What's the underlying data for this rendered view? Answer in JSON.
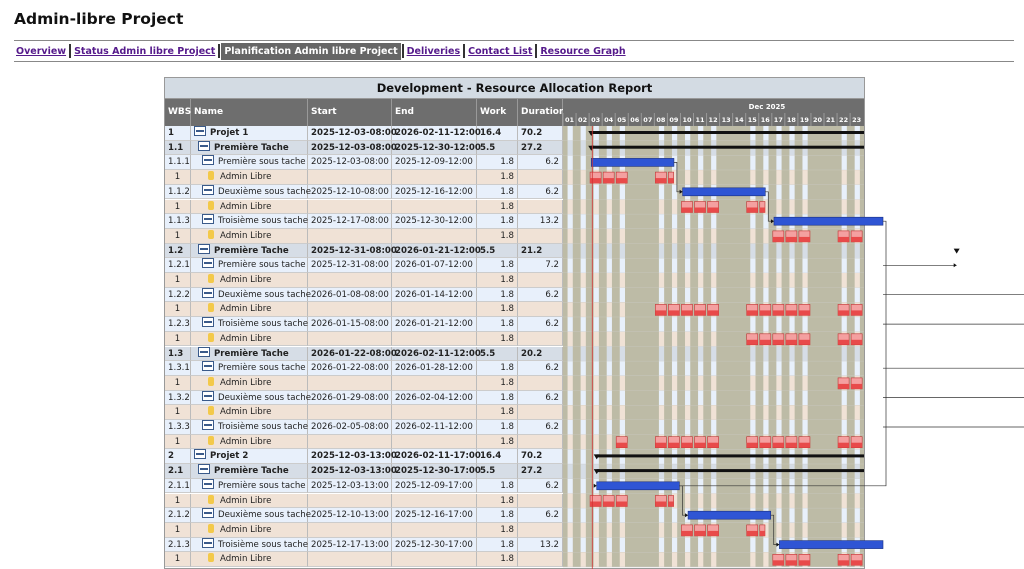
{
  "page_title": "Admin-libre Project",
  "nav": [
    {
      "label": "Overview",
      "active": false
    },
    {
      "label": "Status Admin libre Project",
      "active": false
    },
    {
      "label": "Planification Admin libre Project",
      "active": true
    },
    {
      "label": "Deliveries",
      "active": false
    },
    {
      "label": "Contact List",
      "active": false
    },
    {
      "label": "Resource Graph",
      "active": false
    }
  ],
  "report": {
    "title": "Development - Resource Allocation Report",
    "columns": [
      "WBS",
      "Name",
      "Start",
      "End",
      "Work",
      "Duration"
    ],
    "month_label": "Dec 2025",
    "days": [
      "01",
      "02",
      "03",
      "04",
      "05",
      "06",
      "07",
      "08",
      "09",
      "10",
      "11",
      "12",
      "13",
      "14",
      "15",
      "16",
      "17",
      "18",
      "19",
      "20",
      "21",
      "22",
      "23"
    ],
    "colors": {
      "task_bar": "#2f55d4",
      "resource_block": "#e84a4a",
      "today_line": "#d03030",
      "weekend": "#bdbba6"
    },
    "rows": [
      {
        "type": "proj",
        "wbs": "1",
        "name": "Projet 1",
        "start": "2025-12-03-08:00",
        "end": "2026-02-11-12:00",
        "work": "16.4",
        "duration": "70.2"
      },
      {
        "type": "sum",
        "wbs": "1.1",
        "name": "Première Tache",
        "start": "2025-12-03-08:00",
        "end": "2025-12-30-12:00",
        "work": "5.5",
        "duration": "27.2"
      },
      {
        "type": "task",
        "wbs": "1.1.1",
        "name": "Première sous tache",
        "start": "2025-12-03-08:00",
        "end": "2025-12-09-12:00",
        "work": "1.8",
        "duration": "6.2"
      },
      {
        "type": "res",
        "wbs": "1",
        "name": "Admin Libre",
        "work": "1.8",
        "start": "",
        "end": "",
        "duration": ""
      },
      {
        "type": "task",
        "wbs": "1.1.2",
        "name": "Deuxième sous tache",
        "start": "2025-12-10-08:00",
        "end": "2025-12-16-12:00",
        "work": "1.8",
        "duration": "6.2"
      },
      {
        "type": "res",
        "wbs": "1",
        "name": "Admin Libre",
        "work": "1.8",
        "start": "",
        "end": "",
        "duration": ""
      },
      {
        "type": "task",
        "wbs": "1.1.3",
        "name": "Troisième sous tache",
        "start": "2025-12-17-08:00",
        "end": "2025-12-30-12:00",
        "work": "1.8",
        "duration": "13.2"
      },
      {
        "type": "res",
        "wbs": "1",
        "name": "Admin Libre",
        "work": "1.8",
        "start": "",
        "end": "",
        "duration": ""
      },
      {
        "type": "sum",
        "wbs": "1.2",
        "name": "Première Tache",
        "start": "2025-12-31-08:00",
        "end": "2026-01-21-12:00",
        "work": "5.5",
        "duration": "21.2"
      },
      {
        "type": "task",
        "wbs": "1.2.1",
        "name": "Première sous tache",
        "start": "2025-12-31-08:00",
        "end": "2026-01-07-12:00",
        "work": "1.8",
        "duration": "7.2"
      },
      {
        "type": "res",
        "wbs": "1",
        "name": "Admin Libre",
        "work": "1.8",
        "start": "",
        "end": "",
        "duration": ""
      },
      {
        "type": "task",
        "wbs": "1.2.2",
        "name": "Deuxième sous tache",
        "start": "2026-01-08-08:00",
        "end": "2026-01-14-12:00",
        "work": "1.8",
        "duration": "6.2"
      },
      {
        "type": "res",
        "wbs": "1",
        "name": "Admin Libre",
        "work": "1.8",
        "start": "",
        "end": "",
        "duration": ""
      },
      {
        "type": "task",
        "wbs": "1.2.3",
        "name": "Troisième sous tache",
        "start": "2026-01-15-08:00",
        "end": "2026-01-21-12:00",
        "work": "1.8",
        "duration": "6.2"
      },
      {
        "type": "res",
        "wbs": "1",
        "name": "Admin Libre",
        "work": "1.8",
        "start": "",
        "end": "",
        "duration": ""
      },
      {
        "type": "sum",
        "wbs": "1.3",
        "name": "Première Tache",
        "start": "2026-01-22-08:00",
        "end": "2026-02-11-12:00",
        "work": "5.5",
        "duration": "20.2"
      },
      {
        "type": "task",
        "wbs": "1.3.1",
        "name": "Première sous tache",
        "start": "2026-01-22-08:00",
        "end": "2026-01-28-12:00",
        "work": "1.8",
        "duration": "6.2"
      },
      {
        "type": "res",
        "wbs": "1",
        "name": "Admin Libre",
        "work": "1.8",
        "start": "",
        "end": "",
        "duration": ""
      },
      {
        "type": "task",
        "wbs": "1.3.2",
        "name": "Deuxième sous tache",
        "start": "2026-01-29-08:00",
        "end": "2026-02-04-12:00",
        "work": "1.8",
        "duration": "6.2"
      },
      {
        "type": "res",
        "wbs": "1",
        "name": "Admin Libre",
        "work": "1.8",
        "start": "",
        "end": "",
        "duration": ""
      },
      {
        "type": "task",
        "wbs": "1.3.3",
        "name": "Troisième sous tache",
        "start": "2026-02-05-08:00",
        "end": "2026-02-11-12:00",
        "work": "1.8",
        "duration": "6.2"
      },
      {
        "type": "res",
        "wbs": "1",
        "name": "Admin Libre",
        "work": "1.8",
        "start": "",
        "end": "",
        "duration": ""
      },
      {
        "type": "proj",
        "wbs": "2",
        "name": "Projet 2",
        "start": "2025-12-03-13:00",
        "end": "2026-02-11-17:00",
        "work": "16.4",
        "duration": "70.2"
      },
      {
        "type": "sum",
        "wbs": "2.1",
        "name": "Première Tache",
        "start": "2025-12-03-13:00",
        "end": "2025-12-30-17:00",
        "work": "5.5",
        "duration": "27.2"
      },
      {
        "type": "task",
        "wbs": "2.1.1",
        "name": "Première sous tache",
        "start": "2025-12-03-13:00",
        "end": "2025-12-09-17:00",
        "work": "1.8",
        "duration": "6.2"
      },
      {
        "type": "res",
        "wbs": "1",
        "name": "Admin Libre",
        "work": "1.8",
        "start": "",
        "end": "",
        "duration": ""
      },
      {
        "type": "task",
        "wbs": "2.1.2",
        "name": "Deuxième sous tache",
        "start": "2025-12-10-13:00",
        "end": "2025-12-16-17:00",
        "work": "1.8",
        "duration": "6.2"
      },
      {
        "type": "res",
        "wbs": "1",
        "name": "Admin Libre",
        "work": "1.8",
        "start": "",
        "end": "",
        "duration": ""
      },
      {
        "type": "task",
        "wbs": "2.1.3",
        "name": "Troisième sous tache",
        "start": "2025-12-17-13:00",
        "end": "2025-12-30-17:00",
        "work": "1.8",
        "duration": "13.2"
      },
      {
        "type": "res",
        "wbs": "1",
        "name": "Admin Libre",
        "work": "1.8",
        "start": "",
        "end": "",
        "duration": ""
      }
    ]
  }
}
